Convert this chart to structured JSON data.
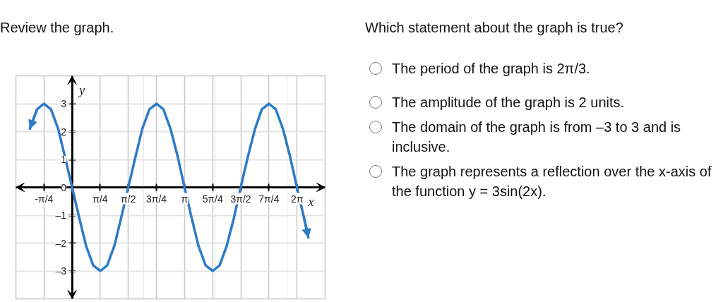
{
  "chart_data": {
    "type": "line",
    "title": "Review the graph.",
    "xlabel": "x",
    "ylabel": "y",
    "annotations": [
      "Which statement about the graph is true?",
      "The period of the graph is 2π/3.",
      "The amplitude of the graph is 2 units.",
      "The domain of the graph is from –3 to 3 and is inclusive.",
      "The graph represents a reflection over the x-axis of the function y = 3sin(2x)."
    ],
    "color": "#2d7bc8",
    "x": [
      -1.18,
      -0.98,
      -0.79,
      -0.59,
      -0.39,
      -0.2,
      0,
      0.2,
      0.39,
      0.59,
      0.79,
      0.98,
      1.18,
      1.37,
      1.57,
      1.77,
      1.96,
      2.16,
      2.36,
      2.55,
      2.75,
      2.95,
      3.14,
      3.34,
      3.53,
      3.73,
      3.93,
      4.12,
      4.32,
      4.52,
      4.71,
      4.91,
      5.11,
      5.3,
      5.5,
      5.69,
      5.89,
      6.09,
      6.28,
      6.48,
      6.6
    ],
    "values": [
      2.1,
      2.8,
      3,
      2.8,
      2.1,
      1.1,
      0,
      -1.1,
      -2.1,
      -2.8,
      -3,
      -2.8,
      -2.1,
      -1.1,
      0,
      1.1,
      2.1,
      2.8,
      3,
      2.8,
      2.1,
      1.1,
      0,
      -1.1,
      -2.1,
      -2.8,
      -3,
      -2.8,
      -2.1,
      -1.1,
      0,
      1.1,
      2.1,
      2.8,
      3,
      2.8,
      2.1,
      1.1,
      0,
      -1.1,
      -1.8
    ],
    "xlim": [
      -1.571,
      7.069
    ],
    "ylim": [
      -4,
      4
    ],
    "xticks": [
      {
        "value": -0.785,
        "label": "-π/4"
      },
      {
        "value": 0.785,
        "label": "π/4"
      },
      {
        "value": 1.571,
        "label": "π/2"
      },
      {
        "value": 2.356,
        "label": "3π/4"
      },
      {
        "value": 3.142,
        "label": "π"
      },
      {
        "value": 3.927,
        "label": "5π/4"
      },
      {
        "value": 4.712,
        "label": "3π/2"
      },
      {
        "value": 5.498,
        "label": "7π/4"
      },
      {
        "value": 6.283,
        "label": "2π"
      }
    ],
    "yticks": [
      {
        "value": -3,
        "label": "–3"
      },
      {
        "value": -2,
        "label": "–2"
      },
      {
        "value": -1,
        "label": "–1"
      },
      0,
      1,
      2,
      3
    ],
    "grid": true
  }
}
